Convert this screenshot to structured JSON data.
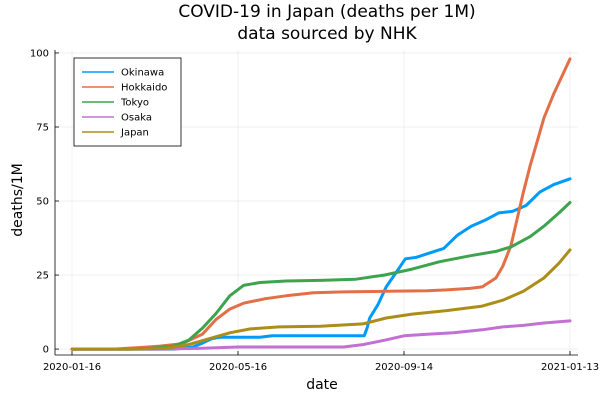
{
  "chart_data": {
    "type": "line",
    "title": "COVID-19 in Japan (deaths per 1M)",
    "subtitle": "data sourced by NHK",
    "xlabel": "date",
    "ylabel": "deaths/1M",
    "x_start": "2020-01-16",
    "x_end": "2021-01-13",
    "x_ticks": [
      "2020-01-16",
      "2020-05-16",
      "2020-09-14",
      "2021-01-13"
    ],
    "y_ticks": [
      0,
      25,
      50,
      75,
      100
    ],
    "ylim": [
      -2,
      101
    ],
    "grid": true,
    "legend_position": "top-left",
    "series": [
      {
        "name": "Okinawa",
        "color": "#009AFA",
        "x": [
          "2020-01-16",
          "2020-03-30",
          "2020-04-13",
          "2020-04-20",
          "2020-04-27",
          "2020-05-03",
          "2020-05-16",
          "2020-06-01",
          "2020-06-10",
          "2020-08-16",
          "2020-08-18",
          "2020-08-20",
          "2020-08-26",
          "2020-09-01",
          "2020-09-07",
          "2020-09-15",
          "2020-09-23",
          "2020-10-03",
          "2020-10-13",
          "2020-10-23",
          "2020-11-02",
          "2020-11-12",
          "2020-11-22",
          "2020-12-02",
          "2020-12-12",
          "2020-12-22",
          "2021-01-01",
          "2021-01-13"
        ],
        "values": [
          0,
          0,
          0.7,
          2.0,
          3.5,
          4.0,
          4.0,
          4.0,
          4.5,
          4.5,
          7.0,
          10.5,
          15.0,
          21.0,
          25.0,
          30.5,
          31.0,
          32.5,
          34.0,
          38.5,
          41.5,
          43.5,
          46.0,
          46.5,
          48.5,
          53.0,
          55.5,
          57.5
        ]
      },
      {
        "name": "Hokkaido",
        "color": "#E26F46",
        "x": [
          "2020-01-16",
          "2020-02-15",
          "2020-03-05",
          "2020-03-20",
          "2020-04-05",
          "2020-04-20",
          "2020-04-30",
          "2020-05-10",
          "2020-05-20",
          "2020-06-05",
          "2020-06-20",
          "2020-07-10",
          "2020-08-01",
          "2020-09-01",
          "2020-10-01",
          "2020-10-15",
          "2020-11-01",
          "2020-11-10",
          "2020-11-20",
          "2020-11-25",
          "2020-12-01",
          "2020-12-05",
          "2020-12-10",
          "2020-12-15",
          "2020-12-20",
          "2020-12-25",
          "2021-01-01",
          "2021-01-08",
          "2021-01-13"
        ],
        "values": [
          0,
          0,
          0.5,
          1.0,
          1.8,
          5.0,
          10.0,
          13.5,
          15.5,
          17.0,
          18.0,
          19.0,
          19.3,
          19.5,
          19.7,
          20.0,
          20.5,
          21.0,
          24.0,
          28.0,
          35.0,
          43.0,
          53.0,
          62.0,
          70.0,
          78.0,
          86.0,
          93.0,
          98.0
        ]
      },
      {
        "name": "Tokyo",
        "color": "#3DA44D",
        "x": [
          "2020-01-16",
          "2020-02-26",
          "2020-03-15",
          "2020-03-30",
          "2020-04-10",
          "2020-04-20",
          "2020-04-30",
          "2020-05-10",
          "2020-05-20",
          "2020-06-01",
          "2020-06-20",
          "2020-07-15",
          "2020-08-10",
          "2020-08-31",
          "2020-09-20",
          "2020-10-10",
          "2020-11-01",
          "2020-11-20",
          "2020-12-01",
          "2020-12-15",
          "2020-12-25",
          "2021-01-05",
          "2021-01-13"
        ],
        "values": [
          0,
          0,
          0.3,
          1.0,
          3.0,
          7.0,
          12.0,
          18.0,
          21.5,
          22.5,
          23.0,
          23.2,
          23.6,
          25.0,
          27.0,
          29.5,
          31.5,
          33.0,
          34.5,
          38.0,
          41.5,
          46.0,
          49.5
        ]
      },
      {
        "name": "Osaka",
        "color": "#C271D2",
        "x": [
          "2020-01-16",
          "2020-03-20",
          "2020-04-20",
          "2020-05-16",
          "2020-06-15",
          "2020-08-01",
          "2020-08-15",
          "2020-08-31",
          "2020-09-14",
          "2020-10-01",
          "2020-10-20",
          "2020-11-10",
          "2020-11-25",
          "2020-12-10",
          "2020-12-25",
          "2021-01-13"
        ],
        "values": [
          0,
          0,
          0.3,
          0.7,
          0.7,
          0.7,
          1.5,
          3.0,
          4.5,
          5.0,
          5.5,
          6.5,
          7.5,
          8.0,
          8.8,
          9.5
        ]
      },
      {
        "name": "Japan",
        "color": "#AC8D18",
        "x": [
          "2020-01-16",
          "2020-03-01",
          "2020-03-25",
          "2020-04-10",
          "2020-04-25",
          "2020-05-10",
          "2020-05-25",
          "2020-06-15",
          "2020-07-15",
          "2020-08-15",
          "2020-09-01",
          "2020-09-20",
          "2020-10-15",
          "2020-11-10",
          "2020-11-25",
          "2020-12-10",
          "2020-12-25",
          "2021-01-05",
          "2021-01-13"
        ],
        "values": [
          0,
          0,
          0.3,
          1.5,
          3.5,
          5.5,
          6.8,
          7.5,
          7.7,
          8.5,
          10.5,
          11.8,
          13.0,
          14.5,
          16.5,
          19.5,
          24.0,
          29.0,
          33.5
        ]
      }
    ]
  }
}
